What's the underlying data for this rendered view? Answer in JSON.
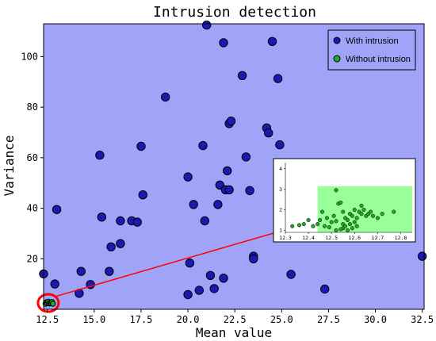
{
  "chart_data": [
    {
      "type": "scatter",
      "title": "Intrusion detection",
      "xlabel": "Mean value",
      "ylabel": "Variance",
      "xlim": [
        12.3,
        32.6
      ],
      "ylim": [
        0,
        113
      ],
      "xticks": [
        "12.5",
        "15.0",
        "17.5",
        "20.0",
        "22.5",
        "25.0",
        "27.5",
        "30.0",
        "32.5"
      ],
      "xtick_values": [
        12.5,
        15.0,
        17.5,
        20.0,
        22.5,
        25.0,
        27.5,
        30.0,
        32.5
      ],
      "yticks": [
        "20",
        "40",
        "60",
        "80",
        "100"
      ],
      "ytick_values": [
        20,
        40,
        60,
        80,
        100
      ],
      "background": "#a0a4f8",
      "legend_position": "top-right",
      "series": [
        {
          "name": "With intrusion",
          "color": "#1a1ab2",
          "points": [
            [
              12.3,
              14
            ],
            [
              12.9,
              10
            ],
            [
              13.0,
              39.5
            ],
            [
              14.2,
              6.3
            ],
            [
              14.3,
              15
            ],
            [
              14.8,
              9.8
            ],
            [
              15.3,
              61
            ],
            [
              15.4,
              36.5
            ],
            [
              15.8,
              15
            ],
            [
              15.9,
              24.7
            ],
            [
              16.4,
              26
            ],
            [
              16.4,
              35
            ],
            [
              17.0,
              35
            ],
            [
              17.3,
              34.5
            ],
            [
              17.5,
              64.5
            ],
            [
              17.6,
              45.3
            ],
            [
              18.8,
              84
            ],
            [
              20.0,
              52.4
            ],
            [
              20.0,
              5.8
            ],
            [
              20.1,
              18.3
            ],
            [
              20.3,
              41.5
            ],
            [
              20.6,
              7.5
            ],
            [
              20.8,
              64.8
            ],
            [
              20.9,
              35
            ],
            [
              21.0,
              112.5
            ],
            [
              21.2,
              13.4
            ],
            [
              21.4,
              8.2
            ],
            [
              21.6,
              41.5
            ],
            [
              21.7,
              49.2
            ],
            [
              21.9,
              12.3
            ],
            [
              22.0,
              47.3
            ],
            [
              21.9,
              105.5
            ],
            [
              22.1,
              54.8
            ],
            [
              22.2,
              73.5
            ],
            [
              22.2,
              47.3
            ],
            [
              22.3,
              74.5
            ],
            [
              22.9,
              92.5
            ],
            [
              23.1,
              60.3
            ],
            [
              23.3,
              47.0
            ],
            [
              23.5,
              21.0
            ],
            [
              23.5,
              20.0
            ],
            [
              24.2,
              71.8
            ],
            [
              24.3,
              69.8
            ],
            [
              24.5,
              106
            ],
            [
              24.8,
              91.3
            ],
            [
              24.9,
              65.1
            ],
            [
              25.5,
              13.8
            ],
            [
              27.3,
              8.0
            ],
            [
              32.5,
              21.0
            ]
          ]
        },
        {
          "name": "Without intrusion",
          "color": "#22aa22",
          "points": [
            [
              12.4,
              2.2
            ],
            [
              12.45,
              2.8
            ],
            [
              12.5,
              2.5
            ],
            [
              12.55,
              3.0
            ],
            [
              12.6,
              2.3
            ],
            [
              12.65,
              2.6
            ],
            [
              12.7,
              2.4
            ],
            [
              12.75,
              2.9
            ],
            [
              12.8,
              2.2
            ]
          ]
        }
      ],
      "annotation": {
        "circle_center": [
          12.55,
          2.5
        ],
        "arrow_from": [
          12.9,
          5.0
        ],
        "arrow_to": [
          31.0,
          44.0
        ],
        "color": "#ff0000"
      }
    },
    {
      "type": "scatter",
      "role": "inset",
      "xlim": [
        12.3,
        12.85
      ],
      "ylim": [
        0.9,
        4.3
      ],
      "xticks": [
        "12.3",
        "12.4",
        "12.5",
        "12.6",
        "12.7",
        "12.8"
      ],
      "xtick_values": [
        12.3,
        12.4,
        12.5,
        12.6,
        12.7,
        12.8
      ],
      "yticks": [
        "1",
        "2",
        "3",
        "4"
      ],
      "ytick_values": [
        1,
        2,
        3,
        4
      ],
      "highlight_region": {
        "x": [
          12.44,
          12.85
        ],
        "y": [
          0.9,
          3.15
        ],
        "color": "#99ff99"
      },
      "series": [
        {
          "name": "",
          "color": "#22aa22",
          "points": [
            [
              12.33,
              1.2
            ],
            [
              12.36,
              1.25
            ],
            [
              12.38,
              1.3
            ],
            [
              12.4,
              1.5
            ],
            [
              12.42,
              1.2
            ],
            [
              12.44,
              1.3
            ],
            [
              12.45,
              1.5
            ],
            [
              12.46,
              1.9
            ],
            [
              12.47,
              1.2
            ],
            [
              12.48,
              1.6
            ],
            [
              12.49,
              1.15
            ],
            [
              12.5,
              1.4
            ],
            [
              12.51,
              1.7
            ],
            [
              12.52,
              1.45
            ],
            [
              12.52,
              2.95
            ],
            [
              12.53,
              2.3
            ],
            [
              12.54,
              2.35
            ],
            [
              12.55,
              1.9
            ],
            [
              12.55,
              1.3
            ],
            [
              12.55,
              1.1
            ],
            [
              12.56,
              1.2
            ],
            [
              12.56,
              1.6
            ],
            [
              12.57,
              1.0
            ],
            [
              12.57,
              1.5
            ],
            [
              12.58,
              1.3
            ],
            [
              12.58,
              1.8
            ],
            [
              12.59,
              1.1
            ],
            [
              12.59,
              1.7
            ],
            [
              12.6,
              1.4
            ],
            [
              12.6,
              2.0
            ],
            [
              12.61,
              1.6
            ],
            [
              12.61,
              1.2
            ],
            [
              12.62,
              1.9
            ],
            [
              12.63,
              2.2
            ],
            [
              12.63,
              1.8
            ],
            [
              12.64,
              2.0
            ],
            [
              12.65,
              1.7
            ],
            [
              12.66,
              1.8
            ],
            [
              12.67,
              1.9
            ],
            [
              12.68,
              1.7
            ],
            [
              12.7,
              1.6
            ],
            [
              12.72,
              1.8
            ],
            [
              12.77,
              1.9
            ],
            [
              12.52,
              1.0
            ],
            [
              12.54,
              1.05
            ]
          ]
        }
      ]
    }
  ]
}
